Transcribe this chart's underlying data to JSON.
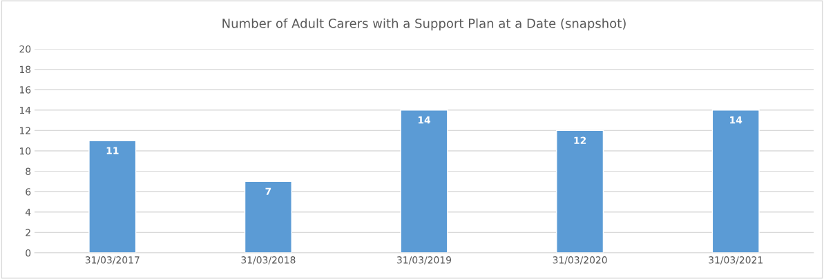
{
  "chart_data": {
    "type": "bar",
    "title": "Number of Adult Carers with a Support Plan at a Date (snapshot)",
    "categories": [
      "31/03/2017",
      "31/03/2018",
      "31/03/2019",
      "31/03/2020",
      "31/03/2021"
    ],
    "values": [
      11,
      7,
      14,
      12,
      14
    ],
    "color": "#5b9bd5",
    "ylim": [
      0,
      20
    ],
    "yticks": [
      0,
      2,
      4,
      6,
      8,
      10,
      12,
      14,
      16,
      18,
      20
    ],
    "grid": "y",
    "data_labels": true
  }
}
